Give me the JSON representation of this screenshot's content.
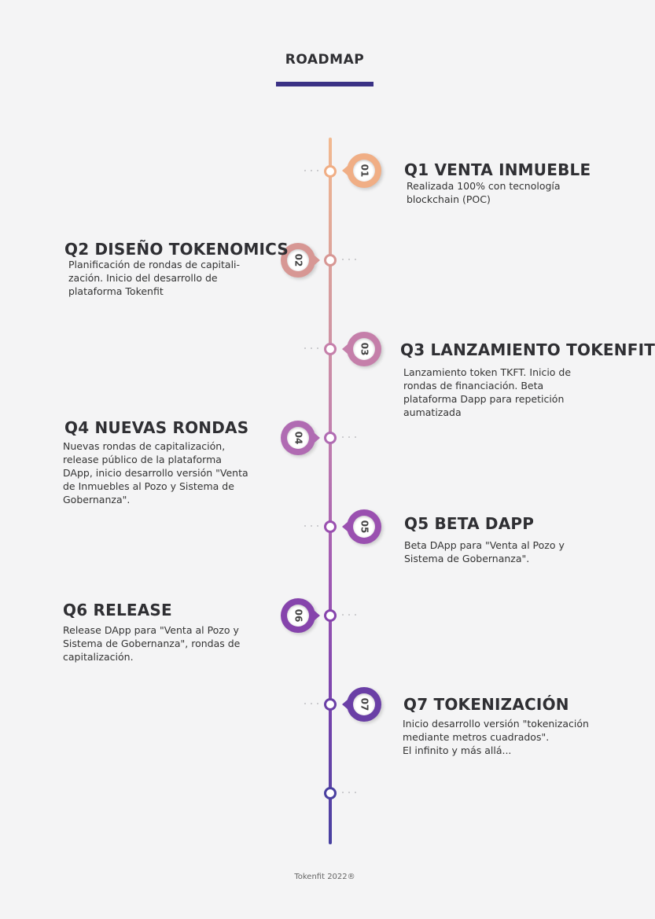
{
  "title": "ROADMAP",
  "footer": "Tokenfit 2022®",
  "colors": {
    "title_bar": "#3a3185",
    "gradient": [
      "#f2b98f",
      "#d69c9e",
      "#c17fae",
      "#a058b2",
      "#7a43ad",
      "#4740a0"
    ]
  },
  "items": [
    {
      "number": "01",
      "heading": "Q1 VENTA INMUEBLE",
      "color": "#f0ae85",
      "lines": [
        "Realizada 100% con tecnología",
        "blockchain (POC)"
      ]
    },
    {
      "number": "02",
      "heading": "Q2 DISEÑO TOKENOMICS",
      "color": "#d79794",
      "lines": [
        "Planificación de rondas de capitali-",
        "zación. Inicio del desarrollo de",
        "plataforma Tokenfit"
      ]
    },
    {
      "number": "03",
      "heading": "Q3 LANZAMIENTO TOKENFIT",
      "color": "#c57faa",
      "lines": [
        "Lanzamiento token TKFT. Inicio de",
        "rondas de financiación. Beta",
        "plataforma Dapp para repetición",
        "aumatizada"
      ]
    },
    {
      "number": "04",
      "heading": "Q4 NUEVAS RONDAS",
      "color": "#b06bb2",
      "lines": [
        "Nuevas rondas de capitalización,",
        "release público de la plataforma",
        "DApp, inicio desarrollo versión \"Venta",
        "de Inmuebles al Pozo y Sistema de",
        "Gobernanza\"."
      ]
    },
    {
      "number": "05",
      "heading": "Q5 BETA DAPP",
      "color": "#9a50b0",
      "lines": [
        "Beta DApp para \"Venta al Pozo y",
        "Sistema de Gobernanza\"."
      ]
    },
    {
      "number": "06",
      "heading": "Q6 RELEASE",
      "color": "#8644ac",
      "lines": [
        "Release DApp para \"Venta al Pozo y",
        "Sistema de Gobernanza\", rondas de",
        "capitalización."
      ]
    },
    {
      "number": "07",
      "heading": "Q7 TOKENIZACIÓN",
      "color": "#6a3fa6",
      "lines": [
        "Inicio desarrollo versión \"tokenización",
        "mediante metros cuadrados\".",
        "El infinito y más allá..."
      ]
    }
  ]
}
